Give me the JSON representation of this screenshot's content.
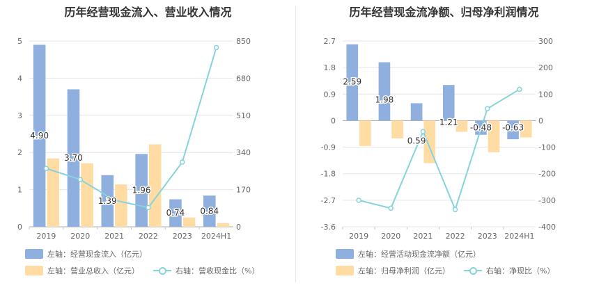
{
  "chart_data": [
    {
      "type": "bar",
      "title": "历年经营现金流入、营业收入情况",
      "categories": [
        "2019",
        "2020",
        "2021",
        "2022",
        "2023",
        "2024H1"
      ],
      "left_axis": {
        "ticks": [
          "0",
          "1",
          "2",
          "3",
          "4",
          "5"
        ],
        "range": [
          0,
          5
        ]
      },
      "right_axis": {
        "ticks": [
          "0",
          "170",
          "340",
          "510",
          "680",
          "850"
        ],
        "range": [
          0,
          850
        ]
      },
      "series": [
        {
          "name": "左轴：经营现金流入（亿元）",
          "axis": "left",
          "kind": "bar",
          "color": "#8FAFDE",
          "values": [
            4.9,
            3.7,
            1.39,
            1.96,
            0.74,
            0.84
          ],
          "labels": [
            "4.90",
            "3.70",
            "1.39",
            "1.96",
            "0.74",
            "0.84"
          ]
        },
        {
          "name": "左轴：营业总收入（亿元）",
          "axis": "left",
          "kind": "bar",
          "color": "#FFDCA3",
          "values": [
            1.84,
            1.71,
            1.14,
            2.22,
            0.25,
            0.1
          ]
        },
        {
          "name": "右轴：营收现金比（%）",
          "axis": "right",
          "kind": "line",
          "color": "#86D3DB",
          "values": [
            267,
            216,
            122,
            88,
            296,
            820
          ]
        }
      ]
    },
    {
      "type": "bar",
      "title": "历年经营现金流净额、归母净利润情况",
      "categories": [
        "2019",
        "2020",
        "2021",
        "2022",
        "2023",
        "2024H1"
      ],
      "left_axis": {
        "ticks": [
          "-3.6",
          "-2.7",
          "-1.8",
          "-0.9",
          "0",
          "0.9",
          "1.8",
          "2.7"
        ],
        "range": [
          -3.6,
          2.7
        ]
      },
      "right_axis": {
        "ticks": [
          "-400",
          "-300",
          "-200",
          "-100",
          "0",
          "100",
          "200",
          "300"
        ],
        "range": [
          -400,
          300
        ]
      },
      "series": [
        {
          "name": "左轴：经营活动现金流净额（亿元）",
          "axis": "left",
          "kind": "bar",
          "color": "#8FAFDE",
          "values": [
            2.59,
            1.98,
            0.59,
            1.21,
            -0.48,
            -0.63
          ],
          "labels": [
            "2.59",
            "1.98",
            "0.59",
            "1.21",
            "-0.48",
            "-0.63"
          ]
        },
        {
          "name": "左轴：归母净利润（亿元）",
          "axis": "left",
          "kind": "bar",
          "color": "#FFDCA3",
          "values": [
            -0.86,
            -0.6,
            -1.44,
            -0.38,
            -1.07,
            -0.57
          ]
        },
        {
          "name": "右轴：净现比（%）",
          "axis": "right",
          "kind": "line",
          "color": "#86D3DB",
          "values": [
            -300,
            -330,
            -41,
            -335,
            45,
            118
          ]
        }
      ]
    }
  ]
}
